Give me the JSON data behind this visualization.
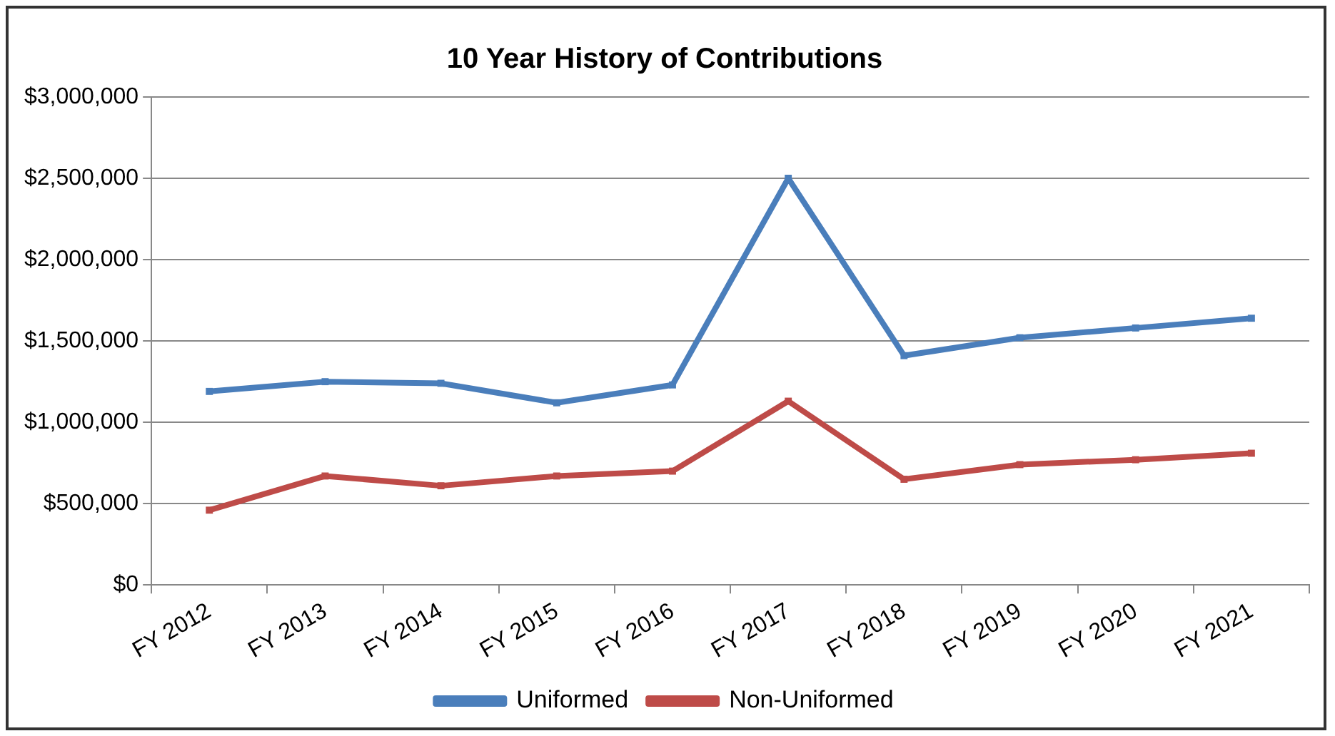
{
  "chart_data": {
    "type": "line",
    "title": "10 Year History of Contributions",
    "categories": [
      "FY 2012",
      "FY 2013",
      "FY 2014",
      "FY 2015",
      "FY 2016",
      "FY 2017",
      "FY 2018",
      "FY 2019",
      "FY 2020",
      "FY 2021"
    ],
    "series": [
      {
        "name": "Uniformed",
        "color": "#4a7ebb",
        "values": [
          1190000,
          1250000,
          1240000,
          1120000,
          1230000,
          2500000,
          1410000,
          1520000,
          1580000,
          1640000
        ]
      },
      {
        "name": "Non-Uniformed",
        "color": "#be4b48",
        "values": [
          460000,
          670000,
          610000,
          670000,
          700000,
          1130000,
          650000,
          740000,
          770000,
          810000
        ]
      }
    ],
    "ylim": [
      0,
      3000000
    ],
    "yticks": [
      {
        "value": 0,
        "label": "$0"
      },
      {
        "value": 500000,
        "label": "$500,000"
      },
      {
        "value": 1000000,
        "label": "$1,000,000"
      },
      {
        "value": 1500000,
        "label": "$1,500,000"
      },
      {
        "value": 2000000,
        "label": "$2,000,000"
      },
      {
        "value": 2500000,
        "label": "$2,500,000"
      },
      {
        "value": 3000000,
        "label": "$3,000,000"
      }
    ],
    "grid": "y",
    "legend": "bottom",
    "marker": "square",
    "line_style": "solid"
  }
}
